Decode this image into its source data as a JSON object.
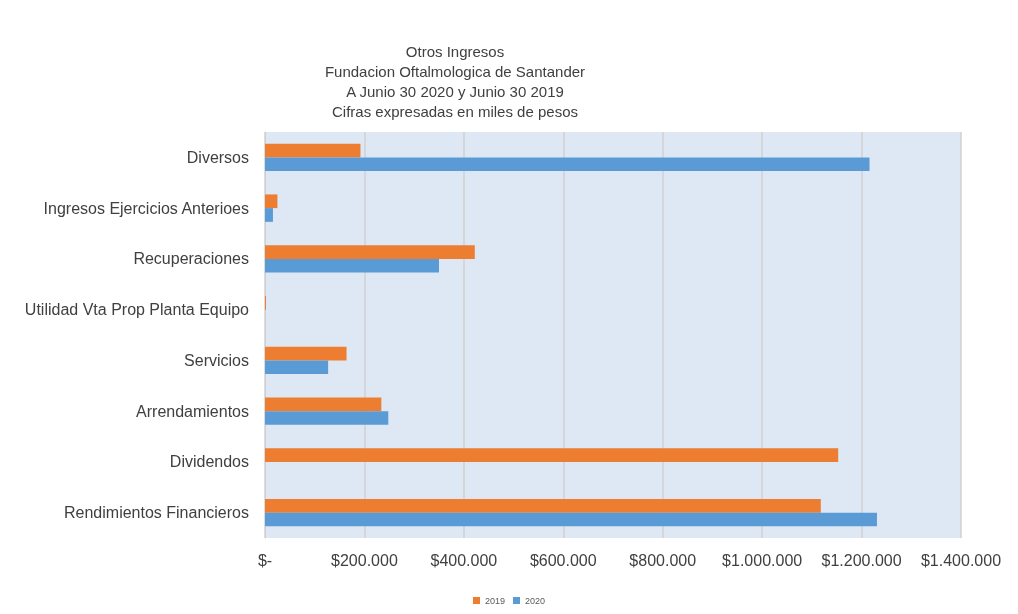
{
  "chart_data": {
    "type": "bar",
    "orientation": "horizontal",
    "title": "Otros Ingresos\nFundacion Oftalmologica de Santander\nA Junio 30 2020 y Junio 30 2019\nCifras expresadas en miles de pesos",
    "categories": [
      "Diversos",
      "Ingresos Ejercicios Anterioes",
      "Recuperaciones",
      "Utilidad Vta Prop Planta Equipo",
      "Servicios",
      "Arrendamientos",
      "Dividendos",
      "Rendimientos Financieros"
    ],
    "series": [
      {
        "name": "2019",
        "color": "#ed7d31",
        "values": [
          192000,
          25000,
          422000,
          2000,
          164000,
          234000,
          1153000,
          1118000
        ]
      },
      {
        "name": "2020",
        "color": "#5b9bd5",
        "values": [
          1216000,
          16000,
          350000,
          0,
          127000,
          248000,
          0,
          1231000
        ]
      }
    ],
    "xlim": [
      0,
      1400000
    ],
    "xticks": [
      {
        "value": 0,
        "label": "$-"
      },
      {
        "value": 200000,
        "label": "$200.000"
      },
      {
        "value": 400000,
        "label": "$400.000"
      },
      {
        "value": 600000,
        "label": "$600.000"
      },
      {
        "value": 800000,
        "label": "$800.000"
      },
      {
        "value": 1000000,
        "label": "$1.000.000"
      },
      {
        "value": 1200000,
        "label": "$1.200.000"
      },
      {
        "value": 1400000,
        "label": "$1.400.000"
      }
    ],
    "grid": "x",
    "legend": "bottom"
  }
}
